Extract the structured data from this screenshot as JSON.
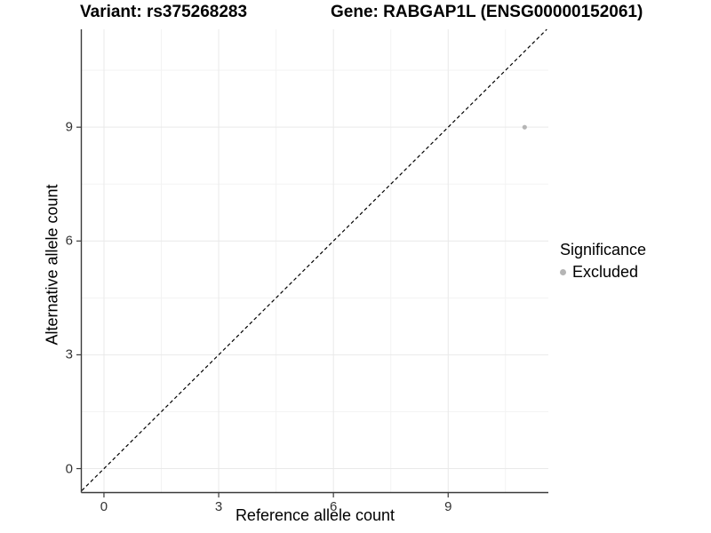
{
  "header": {
    "variant_title": "Variant: rs375268283",
    "gene_title": "Gene: RABGAP1L (ENSG00000152061)"
  },
  "legend": {
    "title": "Significance",
    "items": [
      {
        "label": "Excluded",
        "color": "#b5b5b5"
      }
    ]
  },
  "chart_data": {
    "type": "scatter",
    "title": "Variant: rs375268283  Gene: RABGAP1L (ENSG00000152061)",
    "xlabel": "Reference allele count",
    "ylabel": "Alternative allele count",
    "xlim": [
      -0.58,
      11.62
    ],
    "ylim": [
      -0.62,
      11.58
    ],
    "xticks": [
      "0",
      "3",
      "6",
      "9"
    ],
    "yticks": [
      "0",
      "3",
      "6",
      "9"
    ],
    "xtick_values": [
      0,
      3,
      6,
      9
    ],
    "ytick_values": [
      0,
      3,
      6,
      9
    ],
    "minor_xticks": [
      1.5,
      4.5,
      7.5,
      10.5
    ],
    "minor_yticks": [
      1.5,
      4.5,
      7.5,
      10.5
    ],
    "grid": true,
    "legend_position": "right",
    "series": [
      {
        "name": "Excluded",
        "color": "#b5b5b5",
        "points": [
          {
            "x": 11,
            "y": 9
          }
        ]
      }
    ],
    "abline": {
      "slope": 1,
      "intercept": 0,
      "dashed": true,
      "color": "#000000"
    },
    "colors": {
      "grid_major": "#e9e9e9",
      "grid_minor": "#f3f3f3",
      "axis_line": "#3a3a3a",
      "tick_mark": "#3a3a3a",
      "tick_text": "#333333",
      "point": "#b5b5b5",
      "background": "#ffffff"
    }
  }
}
